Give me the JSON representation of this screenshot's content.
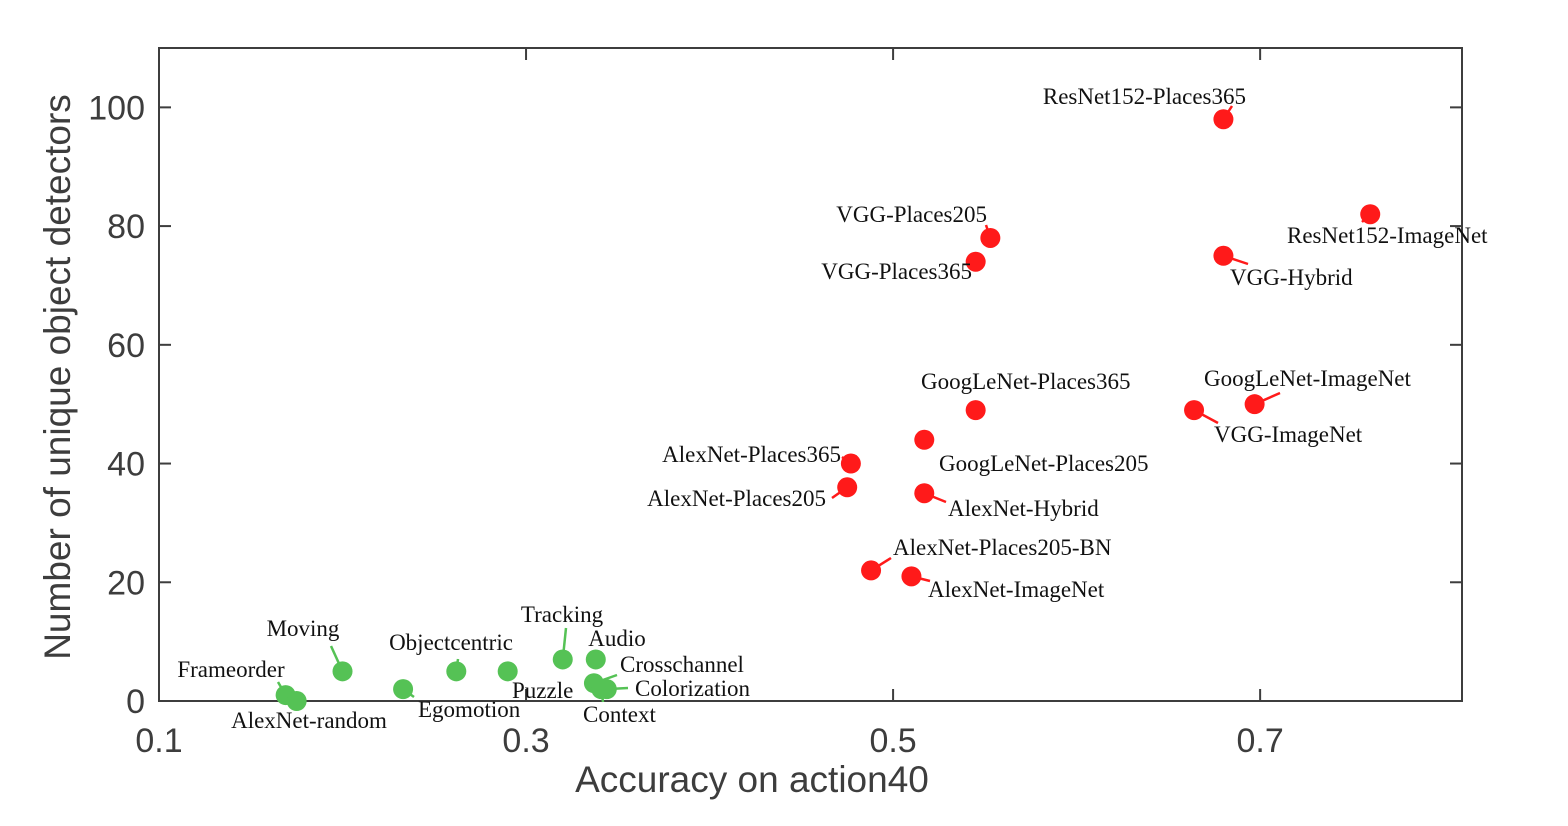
{
  "chart_data": {
    "type": "scatter",
    "title": "",
    "xlabel": "Accuracy on action40",
    "ylabel": "Number of unique object detectors",
    "xlim": [
      0.1,
      0.81
    ],
    "ylim": [
      0,
      110
    ],
    "x_ticks": [
      0.1,
      0.3,
      0.5,
      0.7
    ],
    "x_tick_labels": [
      "0.1",
      "0.3",
      "0.5",
      "0.7"
    ],
    "y_ticks": [
      0,
      20,
      40,
      60,
      80,
      100
    ],
    "y_tick_labels": [
      "0",
      "20",
      "40",
      "60",
      "80",
      "100"
    ],
    "grid": false,
    "colors": {
      "supervised": "#ff1a1a",
      "self_supervised": "#55c255",
      "axis": "#3d3d3d"
    },
    "series": [
      {
        "color_key": "supervised",
        "points": [
          {
            "label": "ResNet152-Places365",
            "x": 0.68,
            "y": 98
          },
          {
            "label": "ResNet152-ImageNet",
            "x": 0.76,
            "y": 82
          },
          {
            "label": "VGG-Places205",
            "x": 0.553,
            "y": 78
          },
          {
            "label": "VGG-Places365",
            "x": 0.545,
            "y": 74
          },
          {
            "label": "VGG-Hybrid",
            "x": 0.68,
            "y": 75
          },
          {
            "label": "GoogLeNet-Places365",
            "x": 0.545,
            "y": 49
          },
          {
            "label": "GoogLeNet-ImageNet",
            "x": 0.697,
            "y": 50
          },
          {
            "label": "VGG-ImageNet",
            "x": 0.664,
            "y": 49
          },
          {
            "label": "GoogLeNet-Places205",
            "x": 0.517,
            "y": 44
          },
          {
            "label": "AlexNet-Places365",
            "x": 0.477,
            "y": 40
          },
          {
            "label": "AlexNet-Places205",
            "x": 0.475,
            "y": 36
          },
          {
            "label": "AlexNet-Hybrid",
            "x": 0.517,
            "y": 35
          },
          {
            "label": "AlexNet-Places205-BN",
            "x": 0.488,
            "y": 22
          },
          {
            "label": "AlexNet-ImageNet",
            "x": 0.51,
            "y": 21
          }
        ]
      },
      {
        "color_key": "self_supervised",
        "points": [
          {
            "label": "Tracking",
            "x": 0.32,
            "y": 7
          },
          {
            "label": "Audio",
            "x": 0.338,
            "y": 7
          },
          {
            "label": "Crosschannel",
            "x": 0.337,
            "y": 3
          },
          {
            "label": "Colorization",
            "x": 0.344,
            "y": 2
          },
          {
            "label": "Context",
            "x": 0.341,
            "y": 2
          },
          {
            "label": "Puzzle",
            "x": 0.29,
            "y": 5
          },
          {
            "label": "Objectcentric",
            "x": 0.262,
            "y": 5
          },
          {
            "label": "Moving",
            "x": 0.2,
            "y": 5
          },
          {
            "label": "Egomotion",
            "x": 0.233,
            "y": 2
          },
          {
            "label": "Frameorder",
            "x": 0.169,
            "y": 1
          },
          {
            "label": "AlexNet-random",
            "x": 0.175,
            "y": 0
          }
        ]
      }
    ]
  }
}
